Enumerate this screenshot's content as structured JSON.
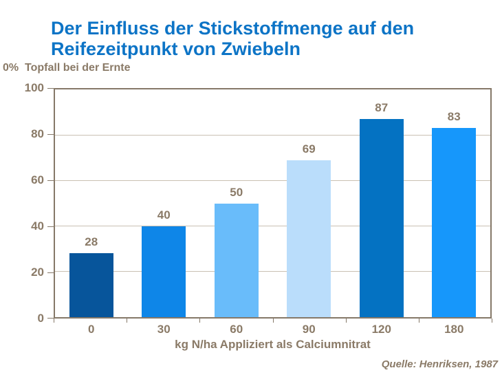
{
  "header": {
    "title_line1": "Der Einfluss der Stickstoffmenge auf den",
    "title_line2": "Reifezeitpunkt von Zwiebeln"
  },
  "chart": {
    "y_axis_title": "0%  Topfall bei der Ernte",
    "x_axis_title": "kg N/ha Appliziert als Calciumnitrat"
  },
  "footer": {
    "source": "Quelle: Henriksen, 1987"
  },
  "colors": {
    "title_blue": "#0D74C6",
    "axis_text_brown": "#8A7A67",
    "frame_brown": "#857868",
    "gridline": "#C9C0B2",
    "background": "#FFFFFF",
    "bar_colors": [
      "#07559B",
      "#0E86E8",
      "#69BCFA",
      "#BADDFB",
      "#0472C2",
      "#1697FB"
    ]
  },
  "chart_data": {
    "type": "bar",
    "title": "Der Einfluss der Stickstoffmenge auf den Reifezeitpunkt von Zwiebeln",
    "categories": [
      "0",
      "30",
      "60",
      "90",
      "120",
      "180"
    ],
    "values": [
      28,
      40,
      50,
      69,
      87,
      83
    ],
    "xlabel": "kg N/ha Appliziert als Calciumnitrat",
    "ylabel": "0%  Topfall bei der Ernte",
    "ylim": [
      0,
      100
    ],
    "yticks": [
      0,
      20,
      40,
      60,
      80,
      100
    ],
    "grid": true,
    "legend_position": "none",
    "source": "Quelle: Henriksen, 1987"
  }
}
